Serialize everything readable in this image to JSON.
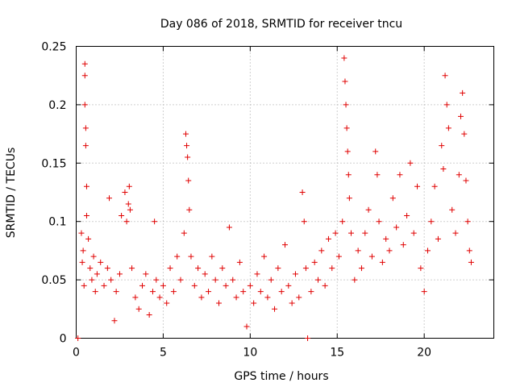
{
  "chart_data": {
    "type": "scatter",
    "title": "Day 086 of 2018, SRMTID for receiver tncu",
    "xlabel": "GPS time / hours",
    "ylabel": "SRMTID / TECUs",
    "xlim": [
      0,
      24
    ],
    "ylim": [
      0,
      0.25
    ],
    "x_ticks": [
      0,
      5,
      10,
      15,
      20
    ],
    "y_ticks": [
      0,
      0.05,
      0.1,
      0.15,
      0.2,
      0.25
    ],
    "x_tick_labels": [
      "0",
      "5",
      "10",
      "15",
      "20"
    ],
    "y_tick_labels": [
      "0",
      "0.05",
      "0.1",
      "0.15",
      "0.2",
      "0.25"
    ],
    "grid": true,
    "marker": "+",
    "color": "#e00000",
    "series": [
      {
        "points": [
          [
            0.1,
            0
          ],
          [
            0.3,
            0.09
          ],
          [
            0.35,
            0.065
          ],
          [
            0.4,
            0.075
          ],
          [
            0.45,
            0.045
          ],
          [
            0.5,
            0.235
          ],
          [
            0.5,
            0.225
          ],
          [
            0.5,
            0.2
          ],
          [
            0.55,
            0.18
          ],
          [
            0.55,
            0.165
          ],
          [
            0.6,
            0.13
          ],
          [
            0.6,
            0.105
          ],
          [
            0.7,
            0.085
          ],
          [
            0.8,
            0.06
          ],
          [
            0.9,
            0.05
          ],
          [
            1.0,
            0.07
          ],
          [
            1.1,
            0.04
          ],
          [
            1.2,
            0.055
          ],
          [
            1.4,
            0.065
          ],
          [
            1.6,
            0.045
          ],
          [
            1.8,
            0.06
          ],
          [
            1.9,
            0.12
          ],
          [
            2.0,
            0.05
          ],
          [
            2.2,
            0.015
          ],
          [
            2.3,
            0.04
          ],
          [
            2.5,
            0.055
          ],
          [
            2.6,
            0.105
          ],
          [
            2.8,
            0.125
          ],
          [
            2.9,
            0.1
          ],
          [
            3.0,
            0.115
          ],
          [
            3.05,
            0.13
          ],
          [
            3.1,
            0.11
          ],
          [
            3.2,
            0.06
          ],
          [
            3.4,
            0.035
          ],
          [
            3.6,
            0.025
          ],
          [
            3.8,
            0.045
          ],
          [
            4.0,
            0.055
          ],
          [
            4.2,
            0.02
          ],
          [
            4.4,
            0.04
          ],
          [
            4.5,
            0.1
          ],
          [
            4.6,
            0.05
          ],
          [
            4.8,
            0.035
          ],
          [
            5.0,
            0.045
          ],
          [
            5.2,
            0.03
          ],
          [
            5.4,
            0.06
          ],
          [
            5.6,
            0.04
          ],
          [
            5.8,
            0.07
          ],
          [
            6.0,
            0.05
          ],
          [
            6.2,
            0.09
          ],
          [
            6.3,
            0.175
          ],
          [
            6.35,
            0.165
          ],
          [
            6.4,
            0.155
          ],
          [
            6.45,
            0.135
          ],
          [
            6.5,
            0.11
          ],
          [
            6.6,
            0.07
          ],
          [
            6.8,
            0.045
          ],
          [
            7.0,
            0.06
          ],
          [
            7.2,
            0.035
          ],
          [
            7.4,
            0.055
          ],
          [
            7.6,
            0.04
          ],
          [
            7.8,
            0.07
          ],
          [
            8.0,
            0.05
          ],
          [
            8.2,
            0.03
          ],
          [
            8.4,
            0.06
          ],
          [
            8.6,
            0.045
          ],
          [
            8.8,
            0.095
          ],
          [
            9.0,
            0.05
          ],
          [
            9.2,
            0.035
          ],
          [
            9.4,
            0.065
          ],
          [
            9.6,
            0.04
          ],
          [
            9.8,
            0.01
          ],
          [
            10.0,
            0.045
          ],
          [
            10.2,
            0.03
          ],
          [
            10.4,
            0.055
          ],
          [
            10.6,
            0.04
          ],
          [
            10.8,
            0.07
          ],
          [
            11.0,
            0.035
          ],
          [
            11.2,
            0.05
          ],
          [
            11.4,
            0.025
          ],
          [
            11.6,
            0.06
          ],
          [
            11.8,
            0.04
          ],
          [
            12.0,
            0.08
          ],
          [
            12.2,
            0.045
          ],
          [
            12.4,
            0.03
          ],
          [
            12.6,
            0.055
          ],
          [
            12.8,
            0.035
          ],
          [
            13.0,
            0.125
          ],
          [
            13.1,
            0.1
          ],
          [
            13.2,
            0.06
          ],
          [
            13.3,
            0
          ],
          [
            13.5,
            0.04
          ],
          [
            13.7,
            0.065
          ],
          [
            13.9,
            0.05
          ],
          [
            14.1,
            0.075
          ],
          [
            14.3,
            0.045
          ],
          [
            14.5,
            0.085
          ],
          [
            14.7,
            0.06
          ],
          [
            14.9,
            0.09
          ],
          [
            15.1,
            0.07
          ],
          [
            15.3,
            0.1
          ],
          [
            15.4,
            0.24
          ],
          [
            15.45,
            0.22
          ],
          [
            15.5,
            0.2
          ],
          [
            15.55,
            0.18
          ],
          [
            15.6,
            0.16
          ],
          [
            15.65,
            0.14
          ],
          [
            15.7,
            0.12
          ],
          [
            15.8,
            0.09
          ],
          [
            16.0,
            0.05
          ],
          [
            16.2,
            0.075
          ],
          [
            16.4,
            0.06
          ],
          [
            16.6,
            0.09
          ],
          [
            16.8,
            0.11
          ],
          [
            17.0,
            0.07
          ],
          [
            17.2,
            0.16
          ],
          [
            17.3,
            0.14
          ],
          [
            17.4,
            0.1
          ],
          [
            17.6,
            0.065
          ],
          [
            17.8,
            0.085
          ],
          [
            18.0,
            0.075
          ],
          [
            18.2,
            0.12
          ],
          [
            18.4,
            0.095
          ],
          [
            18.6,
            0.14
          ],
          [
            18.8,
            0.08
          ],
          [
            19.0,
            0.105
          ],
          [
            19.2,
            0.15
          ],
          [
            19.4,
            0.09
          ],
          [
            19.6,
            0.13
          ],
          [
            19.8,
            0.06
          ],
          [
            20.0,
            0.04
          ],
          [
            20.2,
            0.075
          ],
          [
            20.4,
            0.1
          ],
          [
            20.6,
            0.13
          ],
          [
            20.8,
            0.085
          ],
          [
            21.0,
            0.165
          ],
          [
            21.1,
            0.145
          ],
          [
            21.2,
            0.225
          ],
          [
            21.3,
            0.2
          ],
          [
            21.4,
            0.18
          ],
          [
            21.6,
            0.11
          ],
          [
            21.8,
            0.09
          ],
          [
            22.0,
            0.14
          ],
          [
            22.1,
            0.19
          ],
          [
            22.2,
            0.21
          ],
          [
            22.3,
            0.175
          ],
          [
            22.4,
            0.135
          ],
          [
            22.5,
            0.1
          ],
          [
            22.6,
            0.075
          ],
          [
            22.7,
            0.065
          ]
        ]
      }
    ]
  }
}
